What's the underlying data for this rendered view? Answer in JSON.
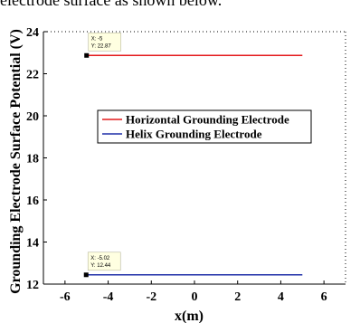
{
  "caption": "electrode surface as shown below.",
  "chart_data": {
    "type": "line",
    "xlabel": "x(m)",
    "ylabel": "Grounding Electrode Surface Potential (V)",
    "xlim": [
      -7,
      7
    ],
    "ylim": [
      12,
      24
    ],
    "xticks": [
      -6,
      -4,
      -2,
      0,
      2,
      4,
      6
    ],
    "yticks": [
      12,
      14,
      16,
      18,
      20,
      22,
      24
    ],
    "grid": false,
    "legend_position": "center-left",
    "series": [
      {
        "name": "Horizontal Grounding Electrode",
        "color": "#e41a1c",
        "x": [
          -5,
          5
        ],
        "y": [
          22.87,
          22.87
        ]
      },
      {
        "name": "Helix Grounding Electrode",
        "color": "#1f2fa8",
        "x": [
          -5.02,
          5
        ],
        "y": [
          12.44,
          12.44
        ]
      }
    ],
    "datatips": [
      {
        "x": -5,
        "y": 22.87,
        "line1": "X: -5",
        "line2": "Y: 22.87"
      },
      {
        "x": -5.02,
        "y": 12.44,
        "line1": "X: -5.02",
        "line2": "Y: 12.44"
      }
    ]
  }
}
